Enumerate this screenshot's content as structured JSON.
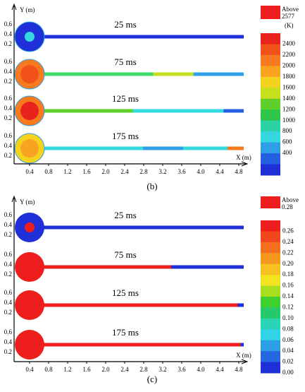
{
  "panels": [
    {
      "label": "(b)",
      "y_axis": "Y (m)",
      "x_axis": "X (m)",
      "xticks": [
        "0.4",
        "0.8",
        "1.2",
        "1.6",
        "2.0",
        "2.4",
        "2.8",
        "3.2",
        "3.6",
        "4.0",
        "4.4",
        "4.8"
      ],
      "yticks": [
        "0.6",
        "0.4",
        "0.2"
      ],
      "frames": [
        "25 ms",
        "75 ms",
        "125 ms",
        "175 ms"
      ],
      "colorbar": {
        "above": "Above",
        "above_value": "2577",
        "unit": "(K)",
        "labels": [
          "2400",
          "2200",
          "2000",
          "1800",
          "1600",
          "1400",
          "1200",
          "1000",
          "800",
          "600",
          "400"
        ]
      }
    },
    {
      "label": "(c)",
      "y_axis": "Y (m)",
      "x_axis": "X (m)",
      "xticks": [
        "0.4",
        "0.8",
        "1.2",
        "1.6",
        "2.0",
        "2.4",
        "2.8",
        "3.2",
        "3.6",
        "4.0",
        "4.4",
        "4.8"
      ],
      "yticks": [
        "0.6",
        "0.4",
        "0.2"
      ],
      "frames": [
        "25 ms",
        "75 ms",
        "125 ms",
        "175 ms"
      ],
      "colorbar": {
        "above": "Above",
        "above_value": "0.28",
        "labels": [
          "0.26",
          "0.24",
          "0.22",
          "0.20",
          "0.18",
          "0.16",
          "0.14",
          "0.12",
          "0.10",
          "0.08",
          "0.06",
          "0.04",
          "0.02",
          "0.00"
        ]
      }
    }
  ]
}
